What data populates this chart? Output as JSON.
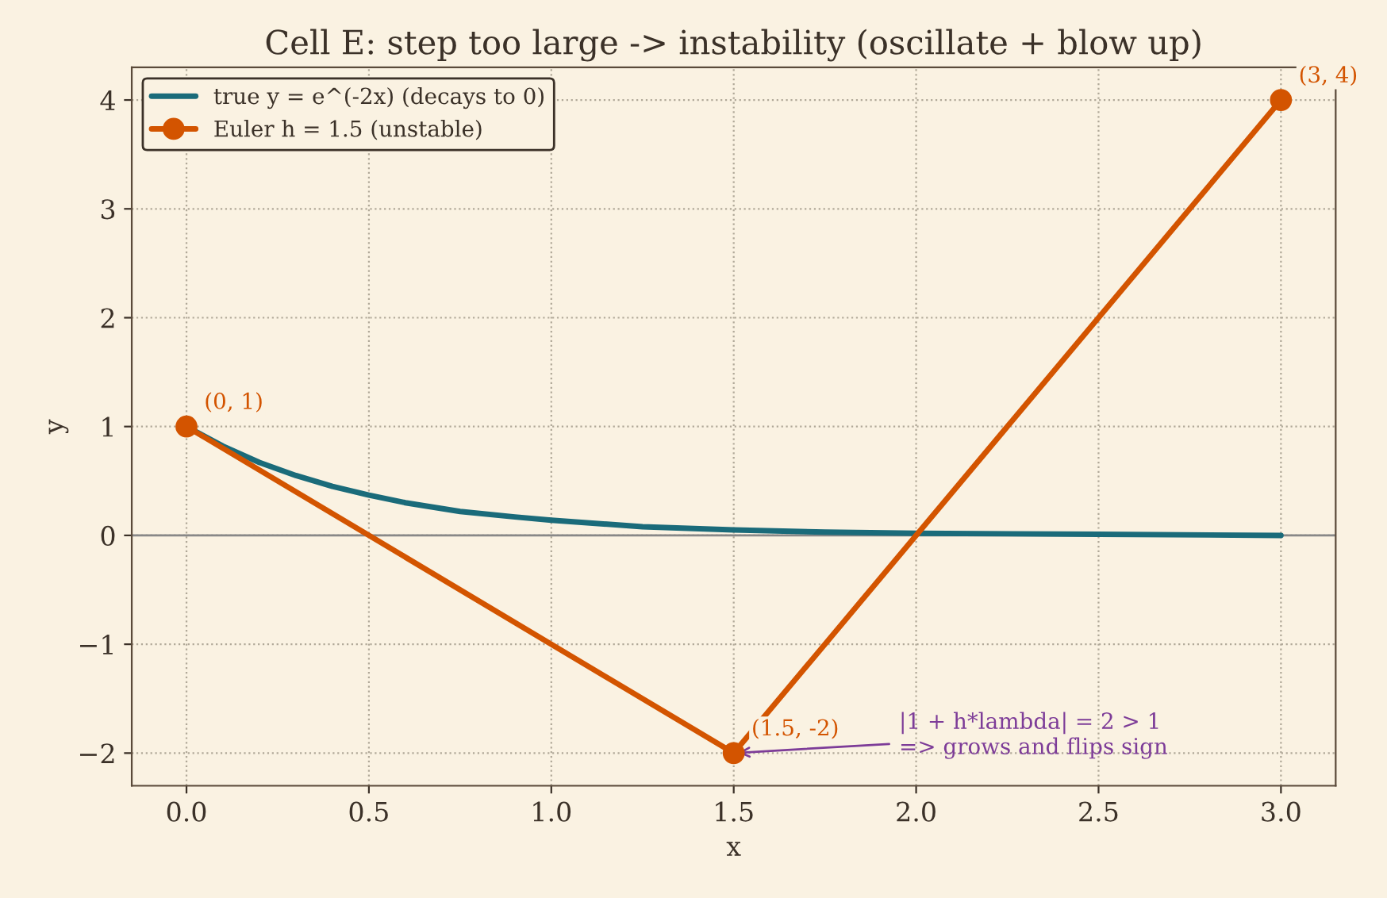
{
  "chart_data": {
    "type": "line",
    "title": "Cell E: step too large -> instability (oscillate + blow up)",
    "xlabel": "x",
    "ylabel": "y",
    "series": [
      {
        "name": "true y = e^(-2x) (decays to 0)",
        "color": "#1a6b7a",
        "marker": "none",
        "x": [
          0,
          0.1,
          0.2,
          0.3,
          0.4,
          0.5,
          0.6,
          0.75,
          0.9,
          1.0,
          1.25,
          1.5,
          1.75,
          2.0,
          2.5,
          3.0
        ],
        "values": [
          1,
          0.82,
          0.67,
          0.55,
          0.45,
          0.37,
          0.3,
          0.22,
          0.17,
          0.14,
          0.08,
          0.05,
          0.03,
          0.02,
          0.01,
          0.0
        ]
      },
      {
        "name": "Euler h = 1.5 (unstable)",
        "color": "#d35400",
        "marker": "circle",
        "x": [
          0,
          1.5,
          3.0
        ],
        "values": [
          1,
          -2,
          4
        ]
      }
    ],
    "xlim": [
      -0.15,
      3.15
    ],
    "ylim": [
      -2.3,
      4.3
    ],
    "xticks": [
      {
        "value": 0,
        "label": "0.0"
      },
      0.5,
      {
        "value": 1,
        "label": "1.0"
      },
      1.5,
      {
        "value": 2,
        "label": "2.0"
      },
      2.5,
      {
        "value": 3,
        "label": "3.0"
      }
    ],
    "yticks": [
      {
        "value": -2,
        "label": "−2"
      },
      {
        "value": -1,
        "label": "−1"
      },
      0,
      1,
      2,
      3,
      4
    ],
    "ref_lines": [
      {
        "axis": "y",
        "value": 0,
        "color": "#888888"
      }
    ],
    "grid": true,
    "legend": "top left",
    "line_style": "solid",
    "annotations": [
      {
        "text": "(0, 1)",
        "x": 0,
        "y": 1
      },
      {
        "text": "(1.5, -2)",
        "x": 1.5,
        "y": -2
      },
      {
        "text": "(3, 4)",
        "x": 3,
        "y": 4
      },
      {
        "text": "|1 + h*lambda| = 2 > 1\n=> grows and flips sign",
        "x": 1.5,
        "y": -2
      }
    ]
  }
}
